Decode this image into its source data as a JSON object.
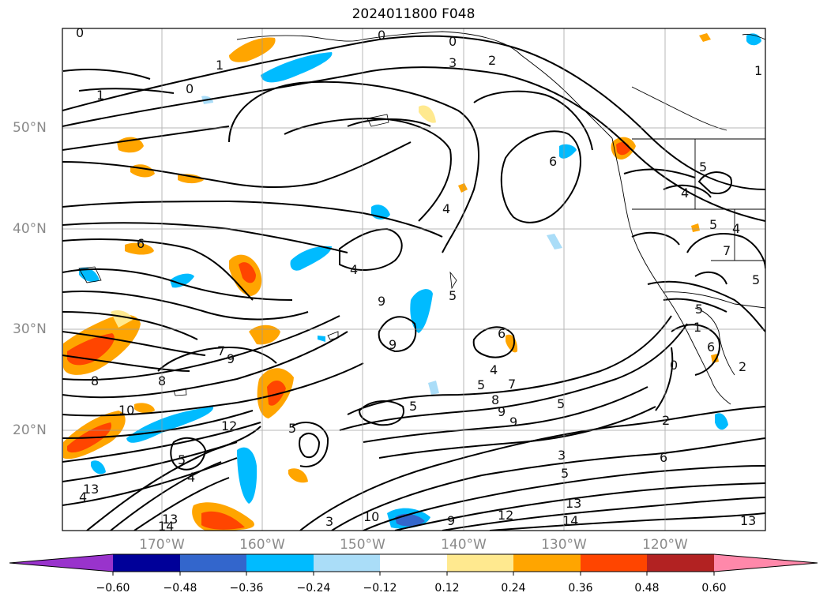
{
  "title": "2024011800 F048",
  "lat_labels": [
    "50°N",
    "40°N",
    "30°N",
    "20°N"
  ],
  "lon_labels": [
    "170°W",
    "160°W",
    "150°W",
    "140°W",
    "130°W",
    "120°W"
  ],
  "colorbar": {
    "ticks": [
      "−0.60",
      "−0.48",
      "−0.36",
      "−0.24",
      "−0.12",
      "0.12",
      "0.24",
      "0.36",
      "0.48",
      "0.60"
    ],
    "colors": [
      "#9933cc",
      "#000099",
      "#3366cc",
      "#00bbff",
      "#aaddf8",
      "#ffffff",
      "#ffe98f",
      "#ffa500",
      "#ff4500",
      "#b22222",
      "#ff88aa"
    ]
  },
  "contour_labels": [
    "0",
    "0",
    "0",
    "1",
    "1",
    "1",
    "2",
    "3",
    "0",
    "6",
    "4",
    "4",
    "5",
    "5",
    "9",
    "9",
    "6",
    "7",
    "8",
    "9",
    "10",
    "12",
    "5",
    "4",
    "8",
    "5",
    "9",
    "6",
    "8",
    "5",
    "4",
    "5",
    "7",
    "9",
    "3",
    "5",
    "13",
    "14",
    "10",
    "9",
    "12",
    "13",
    "6",
    "2",
    "0",
    "13",
    "5",
    "5",
    "7",
    "5",
    "1",
    "6",
    "2",
    "4",
    "4",
    "5",
    "13",
    "14",
    "4",
    "3"
  ]
}
